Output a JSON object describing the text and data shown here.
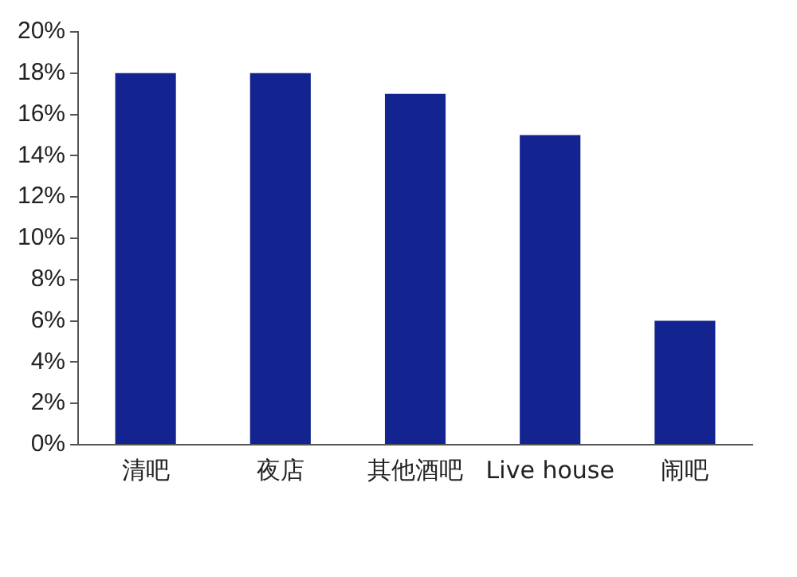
{
  "chart_data": {
    "type": "bar",
    "categories": [
      "清吧",
      "夜店",
      "其他酒吧",
      "Live house",
      "闹吧"
    ],
    "values": [
      18,
      18,
      17,
      15,
      6
    ],
    "color": "#13238f",
    "ylim": [
      0,
      20
    ],
    "yticks": [
      {
        "value": 0,
        "label": "0%"
      },
      {
        "value": 2,
        "label": "2%"
      },
      {
        "value": 4,
        "label": "4%"
      },
      {
        "value": 6,
        "label": "6%"
      },
      {
        "value": 8,
        "label": "8%"
      },
      {
        "value": 10,
        "label": "10%"
      },
      {
        "value": 12,
        "label": "12%"
      },
      {
        "value": 14,
        "label": "14%"
      },
      {
        "value": 16,
        "label": "16%"
      },
      {
        "value": 18,
        "label": "18%"
      },
      {
        "value": 20,
        "label": "20%"
      }
    ],
    "grid": false,
    "legend": false
  }
}
